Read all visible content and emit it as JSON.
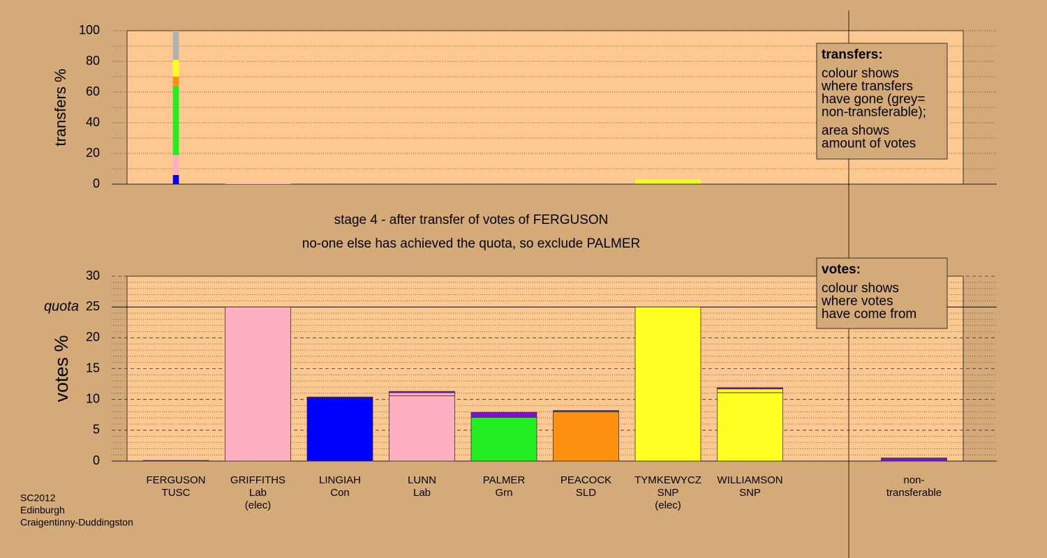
{
  "chart_data": [
    {
      "type": "bar",
      "stacked": true,
      "ylabel": "transfers %",
      "ylim": [
        0,
        100
      ],
      "yticks": [
        0,
        20,
        40,
        60,
        80,
        100
      ],
      "minor_yticks": [
        10,
        30,
        50,
        70,
        90
      ],
      "stacks": [
        [
          {
            "color": "#0000ff",
            "value": 6
          },
          {
            "color": "#ffb0c0",
            "value": 13
          },
          {
            "color": "#22ee22",
            "value": 45
          },
          {
            "color": "#ff9010",
            "value": 6
          },
          {
            "color": "#ffff22",
            "value": 11
          },
          {
            "color": "#b0b0b0",
            "value": 19
          }
        ],
        [
          {
            "color": "#ffb0c0",
            "value": 0.8
          }
        ],
        [],
        [],
        [],
        [],
        [
          {
            "color": "#22ee22",
            "value": 0.6
          },
          {
            "color": "#ffff22",
            "value": 2.4
          }
        ],
        [],
        [],
        []
      ]
    },
    {
      "type": "bar",
      "stacked": true,
      "ylabel": "votes %",
      "ylim": [
        0,
        30
      ],
      "yticks": [
        0,
        5,
        10,
        15,
        20,
        25,
        30
      ],
      "minor_yticks": [
        1,
        2,
        3,
        4,
        6,
        7,
        8,
        9,
        11,
        12,
        13,
        14,
        16,
        17,
        18,
        19,
        21,
        22,
        23,
        24,
        26,
        27,
        28,
        29
      ],
      "quota": {
        "label": "quota",
        "value": 25
      },
      "categories": [
        [
          "FERGUSON",
          "TUSC"
        ],
        [
          "GRIFFITHS",
          "Lab",
          "(elec)"
        ],
        [
          "LINGIAH",
          "Con"
        ],
        [
          "LUNN",
          "Lab"
        ],
        [
          "PALMER",
          "Grn"
        ],
        [
          "PEACOCK",
          "SLD"
        ],
        [
          "TYMKEWYCZ",
          "SNP",
          "(elec)"
        ],
        [
          "WILLIAMSON",
          "SNP"
        ],
        null,
        [
          "non-",
          "transferable"
        ]
      ],
      "stacks": [
        [
          {
            "color": "#7a10d8",
            "value": 0.1
          }
        ],
        [
          {
            "color": "#ffb0c0",
            "value": 25
          }
        ],
        [
          {
            "color": "#0000ff",
            "value": 10.3
          },
          {
            "color": "#7a10d8",
            "value": 0.1
          }
        ],
        [
          {
            "color": "#ffb0c0",
            "value": 10.6
          },
          {
            "color": "#ffb0c0",
            "value": 0.5
          },
          {
            "color": "#7a10d8",
            "value": 0.2
          }
        ],
        [
          {
            "color": "#22ee22",
            "value": 7.1
          },
          {
            "color": "#7a10d8",
            "value": 0.8
          }
        ],
        [
          {
            "color": "#ff9010",
            "value": 8.0
          },
          {
            "color": "#7a10d8",
            "value": 0.2
          }
        ],
        [
          {
            "color": "#ffff22",
            "value": 25
          }
        ],
        [
          {
            "color": "#ffff22",
            "value": 11.1
          },
          {
            "color": "#ffff22",
            "value": 0.6
          },
          {
            "color": "#7a10d8",
            "value": 0.2
          }
        ],
        [],
        [
          {
            "color": "#7a10d8",
            "value": 0.5
          }
        ]
      ]
    }
  ],
  "stage": [
    "stage 4 - after transfer of votes of FERGUSON",
    "no-one else has achieved the quota, so exclude PALMER"
  ],
  "notes": [
    {
      "title": "transfers:",
      "paragraphs": [
        [
          "colour shows",
          "where transfers",
          "have gone (grey=",
          "non-transferable);"
        ],
        [
          "area shows",
          "amount of votes"
        ]
      ]
    },
    {
      "title": "votes:",
      "paragraphs": [
        [
          "colour shows",
          "where votes",
          "have come from"
        ]
      ]
    }
  ],
  "footer": [
    "SC2012",
    "Edinburgh",
    "Craigentinny-Duddingston"
  ]
}
